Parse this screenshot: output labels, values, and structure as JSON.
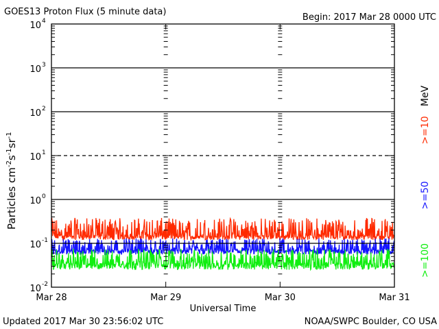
{
  "header": {
    "title": "GOES13 Proton Flux (5 minute data)",
    "begin": "Begin: 2017 Mar 28 0000 UTC"
  },
  "footer": {
    "updated": "Updated 2017 Mar 30 23:56:02 UTC",
    "credit": "NOAA/SWPC Boulder, CO USA"
  },
  "chart_data": {
    "type": "line",
    "title": "GOES13 Proton Flux (5 minute data)",
    "xlabel": "Universal Time",
    "ylabel": "Particles cm⁻²s⁻¹sr⁻¹",
    "ylabel_parts": {
      "text": "Particles cm",
      "e1": "-2",
      "s": "s",
      "e2": "-1",
      "sr": "sr",
      "e3": "-1"
    },
    "y_scale": "log",
    "ylim": [
      0.01,
      10000
    ],
    "y_ticks": [
      {
        "value": 0.01,
        "base": "10",
        "exp": "-2"
      },
      {
        "value": 0.1,
        "base": "10",
        "exp": "-1"
      },
      {
        "value": 1,
        "base": "10",
        "exp": "0"
      },
      {
        "value": 10,
        "base": "10",
        "exp": "1"
      },
      {
        "value": 100,
        "base": "10",
        "exp": "2"
      },
      {
        "value": 1000,
        "base": "10",
        "exp": "3"
      },
      {
        "value": 10000,
        "base": "10",
        "exp": "4"
      }
    ],
    "x_ticks": [
      "Mar 28",
      "Mar 29",
      "Mar 30",
      "Mar 31"
    ],
    "xlim_days": [
      0,
      3
    ],
    "reference_lines": [
      {
        "value": 10,
        "style": "dashed"
      },
      {
        "value": 1,
        "style": "solid"
      },
      {
        "value": 100,
        "style": "solid"
      },
      {
        "value": 1000,
        "style": "solid"
      },
      {
        "value": 0.1,
        "style": "solid"
      }
    ],
    "energy_unit": "MeV",
    "series": [
      {
        "name": ">=10",
        "color": "#ff2a00",
        "baseline": 0.15,
        "low": 0.12,
        "high": 0.38
      },
      {
        "name": ">=50",
        "color": "#1414ff",
        "baseline": 0.07,
        "low": 0.055,
        "high": 0.13
      },
      {
        "name": ">=100",
        "color": "#10ee10",
        "baseline": 0.035,
        "low": 0.025,
        "high": 0.075
      }
    ]
  }
}
